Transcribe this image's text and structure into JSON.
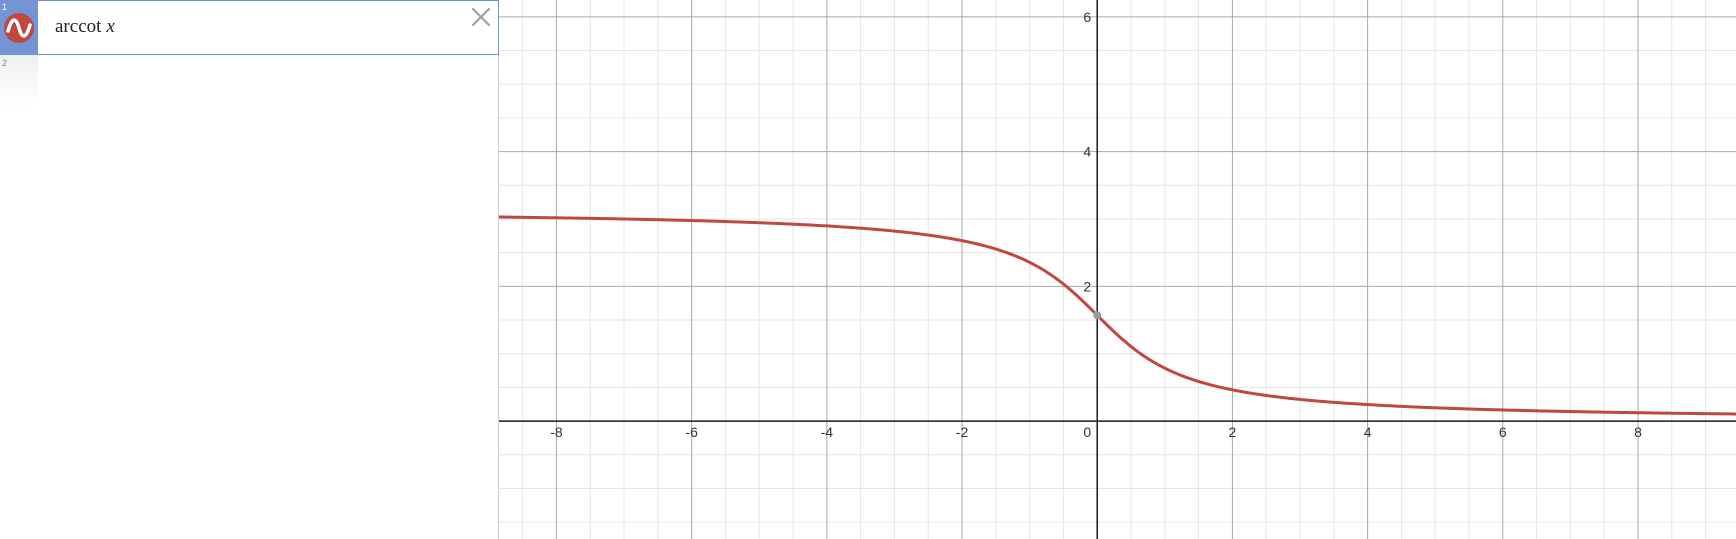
{
  "expressions": [
    {
      "index": "1",
      "func": "arccot",
      "var": "x",
      "color": "#c0483f",
      "icon": "sine-wave-icon"
    },
    {
      "index": "2"
    }
  ],
  "delete_icon": "close-icon",
  "chart_data": {
    "type": "line",
    "series": [
      {
        "name": "",
        "function": "arccot(x)",
        "color": "#c0483f",
        "x": [
          -9,
          -8,
          -6,
          -4,
          -2,
          -1,
          0,
          1,
          2,
          4,
          6,
          8,
          9.5
        ],
        "y": [
          3.031,
          3.017,
          2.976,
          2.897,
          2.678,
          2.356,
          1.571,
          0.785,
          0.464,
          0.245,
          0.165,
          0.124,
          0.105
        ]
      }
    ],
    "xlim": [
      -8.85,
      9.45
    ],
    "ylim": [
      -1.75,
      6.25
    ],
    "x_ticks": [
      "-8",
      "-6",
      "-4",
      "-2",
      "0",
      "2",
      "4",
      "6",
      "8"
    ],
    "y_ticks": [
      "2",
      "4",
      "6"
    ],
    "grid": true,
    "highlight_point": {
      "x": 0,
      "y": 1.571
    }
  }
}
